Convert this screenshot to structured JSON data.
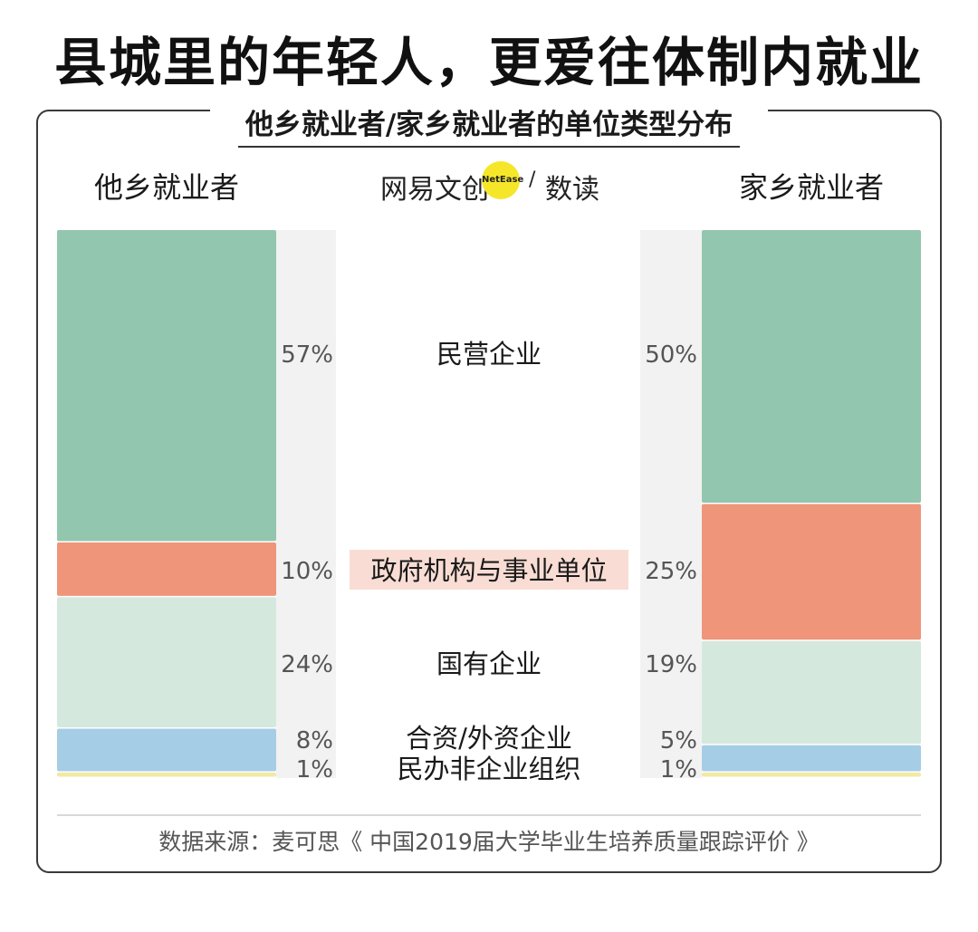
{
  "page": {
    "headline": "县城里的年轻人，更爱往体制内就业",
    "logo_brand": "网易文创",
    "logo_badge": "NetEase",
    "logo_slash": "/",
    "logo_sub": "数读",
    "source": "数据来源：麦可思《 中国2019届大学毕业生培养质量跟踪评价 》"
  },
  "chart_data": {
    "type": "bar",
    "title": "他乡就业者/家乡就业者的单位类型分布",
    "stacked": true,
    "percent_scale": true,
    "categories": [
      "民营企业",
      "政府机构与事业单位",
      "国有企业",
      "合资/外资企业",
      "民办非企业组织"
    ],
    "series": [
      {
        "name": "他乡就业者",
        "values": [
          57,
          10,
          24,
          8,
          1
        ],
        "labels": [
          "57%",
          "10%",
          "24%",
          "8%",
          "1%"
        ]
      },
      {
        "name": "家乡就业者",
        "values": [
          50,
          25,
          19,
          5,
          1
        ],
        "labels": [
          "50%",
          "25%",
          "19%",
          "5%",
          "1%"
        ]
      }
    ],
    "colors": [
      "#92c6ae",
      "#ef957a",
      "#d5e8dd",
      "#a6cde6",
      "#f2e9a2"
    ],
    "highlight_category": "政府机构与事业单位",
    "highlight_color": "#f9ddd4",
    "track_color": "#f2f2f2"
  }
}
